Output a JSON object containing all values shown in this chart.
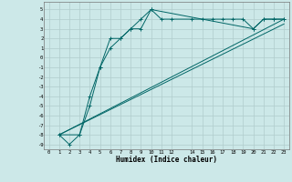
{
  "title": "",
  "xlabel": "Humidex (Indice chaleur)",
  "bg_color": "#cce8e8",
  "grid_color": "#b0cccc",
  "line_color": "#006666",
  "xlim": [
    -0.5,
    23.5
  ],
  "ylim": [
    -9.5,
    5.8
  ],
  "xticks": [
    0,
    1,
    2,
    3,
    4,
    5,
    6,
    7,
    8,
    9,
    10,
    11,
    12,
    14,
    15,
    16,
    17,
    18,
    19,
    20,
    21,
    22,
    23
  ],
  "yticks": [
    5,
    4,
    3,
    2,
    1,
    0,
    -1,
    -2,
    -3,
    -4,
    -5,
    -6,
    -7,
    -8,
    -9
  ],
  "series1_x": [
    1,
    2,
    3,
    4,
    5,
    6,
    7,
    8,
    9,
    10,
    11,
    12,
    14,
    15,
    16,
    17,
    18,
    19,
    20,
    21,
    22,
    23
  ],
  "series1_y": [
    -8,
    -9,
    -8,
    -5,
    -1,
    2,
    2,
    3,
    4,
    5,
    4,
    4,
    4,
    4,
    4,
    4,
    4,
    4,
    3,
    4,
    4,
    4
  ],
  "series2_x": [
    1,
    3,
    4,
    5,
    6,
    7,
    8,
    9,
    10,
    20,
    21,
    22,
    23
  ],
  "series2_y": [
    -8,
    -8,
    -4,
    -1,
    1,
    2,
    3,
    3,
    5,
    3,
    4,
    4,
    4
  ],
  "series3_x": [
    1,
    23
  ],
  "series3_y": [
    -8,
    4
  ],
  "series4_x": [
    1,
    23
  ],
  "series4_y": [
    -8,
    3.5
  ]
}
